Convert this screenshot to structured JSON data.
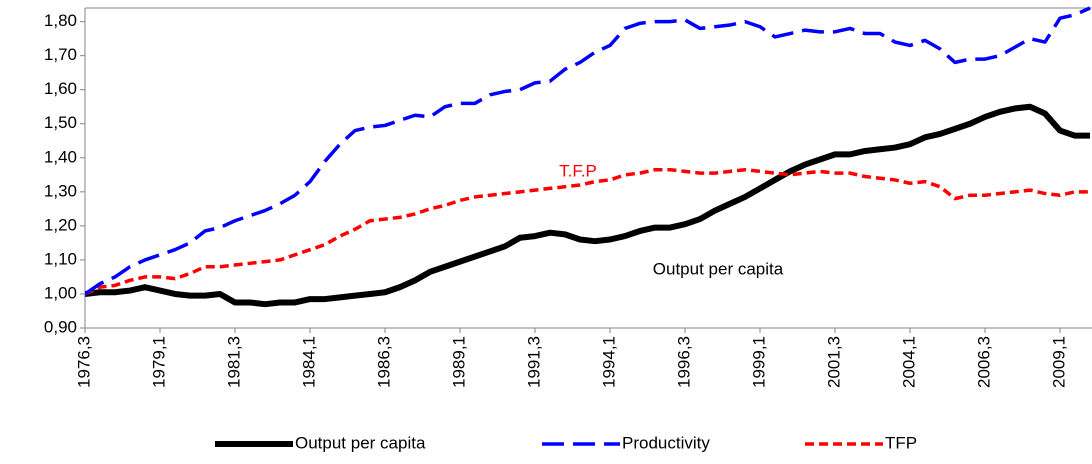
{
  "chart_data": {
    "type": "line",
    "categories": [
      "1976,3",
      null,
      null,
      null,
      null,
      "1979,1",
      null,
      null,
      null,
      null,
      "1981,3",
      null,
      null,
      null,
      null,
      "1984,1",
      null,
      null,
      null,
      null,
      "1986,3",
      null,
      null,
      null,
      null,
      "1989,1",
      null,
      null,
      null,
      null,
      "1991,3",
      null,
      null,
      null,
      null,
      "1994,1",
      null,
      null,
      null,
      null,
      "1996,3",
      null,
      null,
      null,
      null,
      "1999,1",
      null,
      null,
      null,
      null,
      "2001,3",
      null,
      null,
      null,
      null,
      "2004,1",
      null,
      null,
      null,
      null,
      "2006,3",
      null,
      null,
      null,
      null,
      "2009,1",
      null,
      null
    ],
    "series": [
      {
        "name": "Output per capita",
        "color": "#000000",
        "line_style": "solid",
        "values": [
          1.0,
          1.005,
          1.005,
          1.01,
          1.02,
          1.01,
          1.0,
          0.995,
          0.995,
          1.0,
          0.975,
          0.975,
          0.97,
          0.975,
          0.975,
          0.985,
          0.985,
          0.99,
          0.995,
          1.0,
          1.005,
          1.02,
          1.04,
          1.065,
          1.08,
          1.095,
          1.11,
          1.125,
          1.14,
          1.165,
          1.17,
          1.18,
          1.175,
          1.16,
          1.155,
          1.16,
          1.17,
          1.185,
          1.195,
          1.195,
          1.205,
          1.22,
          1.245,
          1.265,
          1.285,
          1.31,
          1.335,
          1.36,
          1.38,
          1.395,
          1.41,
          1.41,
          1.42,
          1.425,
          1.43,
          1.44,
          1.46,
          1.47,
          1.485,
          1.5,
          1.52,
          1.535,
          1.545,
          1.55,
          1.53,
          1.48,
          1.465,
          1.465
        ]
      },
      {
        "name": "Productivity",
        "color": "#0000ff",
        "line_style": "dashed",
        "values": [
          1.0,
          1.03,
          1.05,
          1.08,
          1.1,
          1.115,
          1.13,
          1.15,
          1.185,
          1.195,
          1.215,
          1.23,
          1.245,
          1.265,
          1.29,
          1.33,
          1.39,
          1.44,
          1.48,
          1.49,
          1.495,
          1.51,
          1.525,
          1.52,
          1.55,
          1.56,
          1.56,
          1.585,
          1.595,
          1.6,
          1.62,
          1.625,
          1.66,
          1.68,
          1.71,
          1.73,
          1.78,
          1.795,
          1.8,
          1.8,
          1.805,
          1.78,
          1.785,
          1.79,
          1.8,
          1.785,
          1.755,
          1.765,
          1.775,
          1.77,
          1.77,
          1.78,
          1.765,
          1.765,
          1.74,
          1.73,
          1.745,
          1.72,
          1.68,
          1.69,
          1.69,
          1.7,
          1.725,
          1.75,
          1.74,
          1.81,
          1.82,
          1.84
        ]
      },
      {
        "name": "TFP",
        "color": "#ff0000",
        "line_style": "dotted",
        "values": [
          1.0,
          1.02,
          1.025,
          1.04,
          1.05,
          1.05,
          1.045,
          1.06,
          1.08,
          1.08,
          1.085,
          1.09,
          1.095,
          1.1,
          1.115,
          1.13,
          1.145,
          1.17,
          1.19,
          1.215,
          1.22,
          1.225,
          1.235,
          1.25,
          1.26,
          1.275,
          1.285,
          1.29,
          1.295,
          1.3,
          1.305,
          1.31,
          1.315,
          1.32,
          1.33,
          1.335,
          1.35,
          1.355,
          1.365,
          1.365,
          1.36,
          1.355,
          1.355,
          1.36,
          1.365,
          1.36,
          1.355,
          1.35,
          1.355,
          1.36,
          1.355,
          1.355,
          1.345,
          1.34,
          1.335,
          1.325,
          1.33,
          1.315,
          1.28,
          1.29,
          1.29,
          1.295,
          1.3,
          1.305,
          1.295,
          1.29,
          1.3,
          1.3
        ]
      }
    ],
    "annotations": [
      "T.F.P",
      "Output per capita"
    ],
    "annotation_colors": [
      "#ff0000",
      "#000000"
    ],
    "ylim": [
      0.9,
      1.84
    ],
    "yticks": [
      {
        "value": 0.9,
        "label": "0,90"
      },
      {
        "value": 1.0,
        "label": "1,00"
      },
      {
        "value": 1.1,
        "label": "1,10"
      },
      {
        "value": 1.2,
        "label": "1,20"
      },
      {
        "value": 1.3,
        "label": "1,30"
      },
      {
        "value": 1.4,
        "label": "1,40"
      },
      {
        "value": 1.5,
        "label": "1,50"
      },
      {
        "value": 1.6,
        "label": "1,60"
      },
      {
        "value": 1.7,
        "label": "1,70"
      },
      {
        "value": 1.8,
        "label": "1,80"
      }
    ],
    "grid": false,
    "legend": "bottom"
  }
}
